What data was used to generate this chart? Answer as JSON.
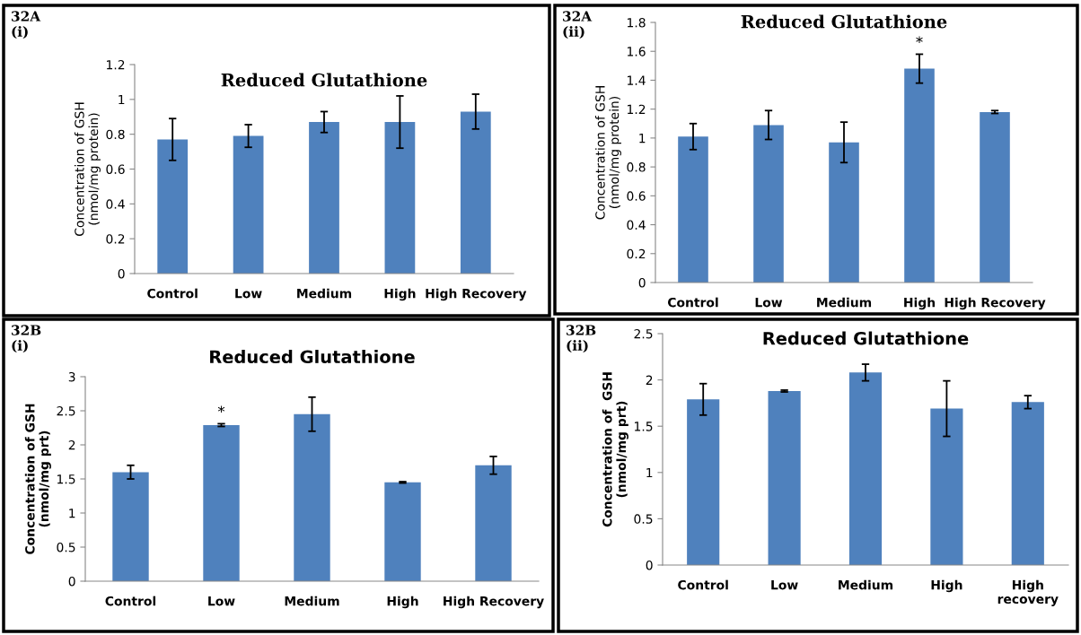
{
  "chart_data": [
    {
      "type": "bar",
      "title": "Reduced Glutathione",
      "ylabel": "Concentration of GSH\n(nmol/mg protein)",
      "categories": [
        "Control",
        "Low",
        "Medium",
        "High",
        "High Recovery"
      ],
      "values": [
        0.77,
        0.79,
        0.87,
        0.87,
        0.93
      ],
      "errors": [
        0.12,
        0.065,
        0.06,
        0.15,
        0.1
      ],
      "color": "#4f81bd",
      "ylim": [
        0,
        1.2
      ],
      "yticks": [
        0,
        0.2,
        0.4,
        0.6,
        0.8,
        1,
        1.2
      ],
      "grid": false,
      "annotations": [
        "32A\n(i)"
      ]
    },
    {
      "type": "bar",
      "title": "Reduced Glutathione",
      "ylabel": "Concentration of GSH\n(nmol/mg protein)",
      "categories": [
        "Control",
        "Low",
        "Medium",
        "High",
        "High Recovery"
      ],
      "values": [
        1.01,
        1.09,
        0.97,
        1.48,
        1.18
      ],
      "errors": [
        0.09,
        0.1,
        0.14,
        0.1,
        0.01
      ],
      "color": "#4f81bd",
      "ylim": [
        0,
        1.8
      ],
      "yticks": [
        0,
        0.2,
        0.4,
        0.6,
        0.8,
        1,
        1.2,
        1.4,
        1.6,
        1.8
      ],
      "grid": false,
      "annotations": [
        "32A\n(ii)",
        {
          "text": "*",
          "x": "High",
          "y": 1.58
        }
      ]
    },
    {
      "type": "bar",
      "title": "Reduced Glutathione",
      "ylabel": "Concentration of GSH\n(nmol/mg prt)",
      "categories": [
        "Control",
        "Low",
        "Medium",
        "High",
        "High Recovery"
      ],
      "values": [
        1.6,
        2.29,
        2.45,
        1.45,
        1.7
      ],
      "errors": [
        0.1,
        0.02,
        0.25,
        0.01,
        0.13
      ],
      "color": "#4f81bd",
      "ylim": [
        0,
        3
      ],
      "yticks": [
        0,
        0.5,
        1,
        1.5,
        2,
        2.5,
        3
      ],
      "grid": false,
      "annotations": [
        "32B\n(i)",
        {
          "text": "*",
          "x": "Low",
          "y": 2.31
        }
      ]
    },
    {
      "type": "bar",
      "title": "Reduced Glutathione",
      "ylabel": "Concentration of  GSH\n(nmol/mg prt)",
      "categories": [
        "Control",
        "Low",
        "Medium",
        "High",
        "High\nrecovery"
      ],
      "values": [
        1.79,
        1.88,
        2.08,
        1.69,
        1.76
      ],
      "errors": [
        0.17,
        0.01,
        0.09,
        0.3,
        0.07
      ],
      "color": "#4f81bd",
      "ylim": [
        0,
        2.5
      ],
      "yticks": [
        0,
        0.5,
        1,
        1.5,
        2,
        2.5
      ],
      "grid": false,
      "annotations": [
        "32B\n(ii)"
      ]
    }
  ]
}
